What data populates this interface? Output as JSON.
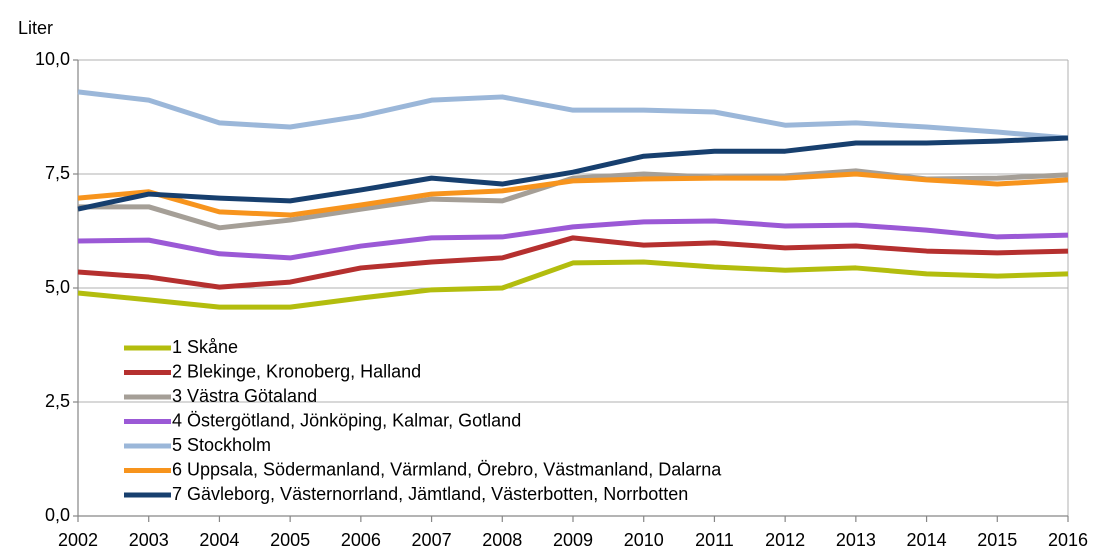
{
  "chart_data": {
    "type": "line",
    "ylabel": "Liter",
    "x": [
      2002,
      2003,
      2004,
      2005,
      2006,
      2007,
      2008,
      2009,
      2010,
      2011,
      2012,
      2013,
      2014,
      2015,
      2016
    ],
    "xlim": [
      2002,
      2016
    ],
    "xticks": [
      2002,
      2003,
      2004,
      2005,
      2006,
      2007,
      2008,
      2009,
      2010,
      2011,
      2012,
      2013,
      2014,
      2015,
      2016
    ],
    "ylim": [
      0,
      10
    ],
    "yticks": [
      {
        "value": 0,
        "label": "0,0"
      },
      {
        "value": 2.5,
        "label": "2,5"
      },
      {
        "value": 5,
        "label": "5,0"
      },
      {
        "value": 7.5,
        "label": "7,5"
      },
      {
        "value": 10,
        "label": "10,0"
      }
    ],
    "grid": true,
    "legend": "lower left",
    "series": [
      {
        "name": "1 Skåne",
        "color": "#b3bd0e",
        "values": [
          4.89,
          4.74,
          4.58,
          4.58,
          4.78,
          4.96,
          5.0,
          5.55,
          5.57,
          5.46,
          5.39,
          5.44,
          5.31,
          5.26,
          5.31
        ]
      },
      {
        "name": "2 Blekinge, Kronoberg, Halland",
        "color": "#b5302f",
        "values": [
          5.35,
          5.24,
          5.02,
          5.13,
          5.44,
          5.57,
          5.66,
          6.1,
          5.94,
          5.99,
          5.88,
          5.92,
          5.81,
          5.77,
          5.81
        ]
      },
      {
        "name": "3 Västra Götaland",
        "color": "#a59f97",
        "values": [
          6.78,
          6.78,
          6.32,
          6.49,
          6.73,
          6.95,
          6.91,
          7.41,
          7.5,
          7.43,
          7.46,
          7.57,
          7.39,
          7.41,
          7.48
        ]
      },
      {
        "name": "4 Östergötland, Jönköping, Kalmar, Gotland",
        "color": "#9b59d6",
        "values": [
          6.03,
          6.05,
          5.75,
          5.66,
          5.92,
          6.1,
          6.12,
          6.34,
          6.45,
          6.47,
          6.36,
          6.38,
          6.27,
          6.12,
          6.16
        ]
      },
      {
        "name": "5 Stockholm",
        "color": "#9bb7d9",
        "values": [
          9.3,
          9.12,
          8.62,
          8.53,
          8.77,
          9.12,
          9.19,
          8.9,
          8.9,
          8.86,
          8.57,
          8.62,
          8.53,
          8.42,
          8.29
        ]
      },
      {
        "name": "6 Uppsala, Södermanland, Värmland, Örebro, Västmanland, Dalarna",
        "color": "#f7941d",
        "values": [
          6.97,
          7.11,
          6.67,
          6.6,
          6.82,
          7.06,
          7.13,
          7.35,
          7.39,
          7.41,
          7.41,
          7.5,
          7.37,
          7.28,
          7.37
        ]
      },
      {
        "name": "7 Gävleborg, Västernorrland, Jämtland, Västerbotten, Norrbotten",
        "color": "#173f6e",
        "values": [
          6.73,
          7.06,
          6.97,
          6.91,
          7.15,
          7.41,
          7.28,
          7.54,
          7.89,
          8.0,
          8.0,
          8.18,
          8.18,
          8.22,
          8.29
        ]
      }
    ]
  }
}
